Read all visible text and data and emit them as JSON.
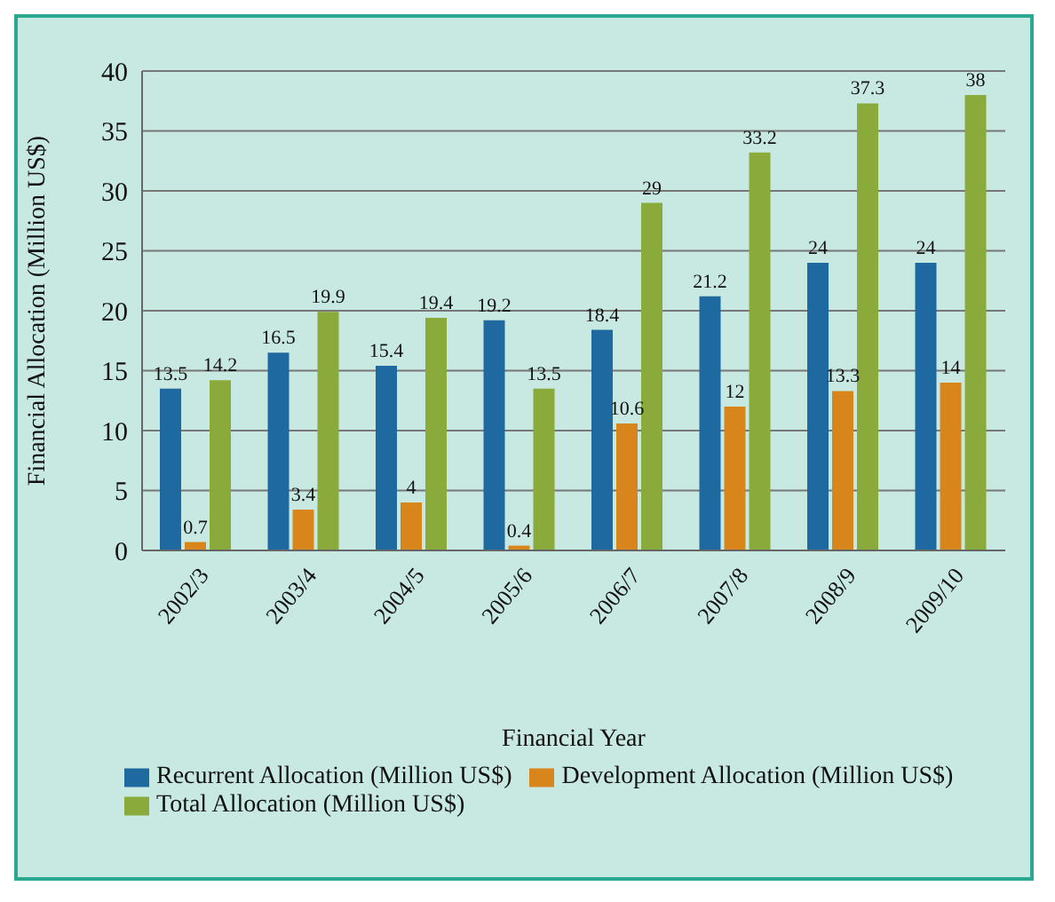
{
  "chart_data": {
    "type": "bar",
    "xlabel": "Financial Year",
    "ylabel": "Financial Allocation (Million US$)",
    "categories": [
      "2002/3",
      "2003/4",
      "2004/5",
      "2005/6",
      "2006/7",
      "2007/8",
      "2008/9",
      "2009/10"
    ],
    "series": [
      {
        "name": "Recurrent Allocation (Million US$)",
        "color": "#1e6aa0",
        "values": [
          13.5,
          16.5,
          15.4,
          19.2,
          18.4,
          21.2,
          24,
          24
        ]
      },
      {
        "name": "Development Allocation (Million US$)",
        "color": "#d8861c",
        "values": [
          0.7,
          3.4,
          4,
          0.4,
          10.6,
          12,
          13.3,
          14
        ]
      },
      {
        "name": "Total Allocation (Million US$)",
        "color": "#8aaa3c",
        "values": [
          14.2,
          19.9,
          19.4,
          13.5,
          29,
          33.2,
          37.3,
          38
        ]
      }
    ],
    "ylim": [
      0,
      40
    ],
    "yticks": [
      0,
      5,
      10,
      15,
      20,
      25,
      30,
      35,
      40
    ],
    "grid": "y",
    "legend": "bottom",
    "data_labels": true
  }
}
